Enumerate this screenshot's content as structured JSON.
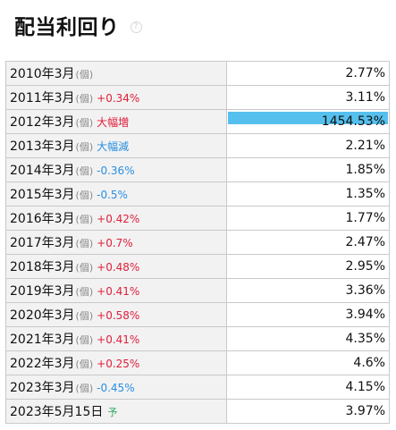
{
  "header": {
    "title": "配当利回り",
    "help_glyph": "?"
  },
  "colors": {
    "up": "#e0203c",
    "down": "#2a8fe0",
    "forecast": "#2aa85a",
    "bar": "#55c0ee"
  },
  "rows": [
    {
      "date": "2010年3月",
      "unit": "(個)",
      "change": "",
      "change_type": "",
      "value": "2.77%",
      "bar_fraction": 0
    },
    {
      "date": "2011年3月",
      "unit": "(個)",
      "change": "+0.34%",
      "change_type": "up",
      "value": "3.11%",
      "bar_fraction": 0
    },
    {
      "date": "2012年3月",
      "unit": "(個)",
      "change": "大幅増",
      "change_type": "up",
      "value": "1454.53%",
      "bar_fraction": 1
    },
    {
      "date": "2013年3月",
      "unit": "(個)",
      "change": "大幅減",
      "change_type": "down",
      "value": "2.21%",
      "bar_fraction": 0
    },
    {
      "date": "2014年3月",
      "unit": "(個)",
      "change": "-0.36%",
      "change_type": "down",
      "value": "1.85%",
      "bar_fraction": 0
    },
    {
      "date": "2015年3月",
      "unit": "(個)",
      "change": "-0.5%",
      "change_type": "down",
      "value": "1.35%",
      "bar_fraction": 0
    },
    {
      "date": "2016年3月",
      "unit": "(個)",
      "change": "+0.42%",
      "change_type": "up",
      "value": "1.77%",
      "bar_fraction": 0
    },
    {
      "date": "2017年3月",
      "unit": "(個)",
      "change": "+0.7%",
      "change_type": "up",
      "value": "2.47%",
      "bar_fraction": 0
    },
    {
      "date": "2018年3月",
      "unit": "(個)",
      "change": "+0.48%",
      "change_type": "up",
      "value": "2.95%",
      "bar_fraction": 0
    },
    {
      "date": "2019年3月",
      "unit": "(個)",
      "change": "+0.41%",
      "change_type": "up",
      "value": "3.36%",
      "bar_fraction": 0
    },
    {
      "date": "2020年3月",
      "unit": "(個)",
      "change": "+0.58%",
      "change_type": "up",
      "value": "3.94%",
      "bar_fraction": 0
    },
    {
      "date": "2021年3月",
      "unit": "(個)",
      "change": "+0.41%",
      "change_type": "up",
      "value": "4.35%",
      "bar_fraction": 0
    },
    {
      "date": "2022年3月",
      "unit": "(個)",
      "change": "+0.25%",
      "change_type": "up",
      "value": "4.6%",
      "bar_fraction": 0
    },
    {
      "date": "2023年3月",
      "unit": "(個)",
      "change": "-0.45%",
      "change_type": "down",
      "value": "4.15%",
      "bar_fraction": 0
    },
    {
      "date": "2023年5月15日",
      "unit": "",
      "change": "予",
      "change_type": "forecast",
      "value": "3.97%",
      "bar_fraction": 0
    }
  ]
}
